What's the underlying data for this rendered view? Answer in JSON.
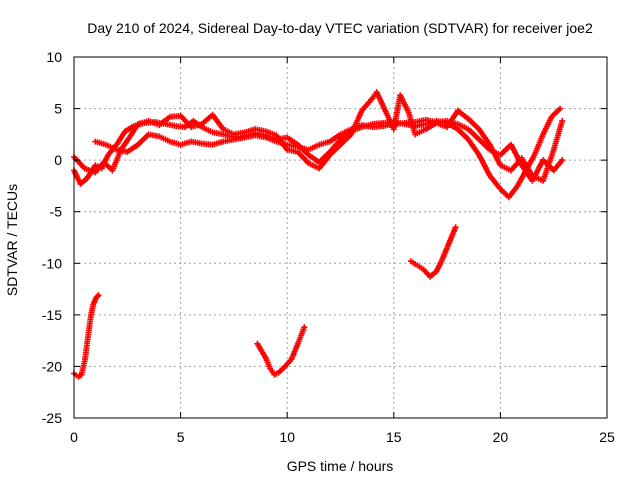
{
  "chart_data": {
    "type": "scatter",
    "title": "Day 210 of 2024, Sidereal Day-to-day VTEC variation (SDTVAR) for receiver joe2",
    "xlabel": "GPS time / hours",
    "ylabel": "SDTVAR / TECUs",
    "xlim": [
      0,
      25
    ],
    "ylim": [
      -25,
      10
    ],
    "xticks": [
      0,
      5,
      10,
      15,
      20,
      25
    ],
    "yticks": [
      -25,
      -20,
      -15,
      -10,
      -5,
      0,
      5,
      10
    ],
    "grid": true,
    "legend": "none",
    "series_color": "#ff0000",
    "marker": "plus",
    "series": [
      {
        "name": "trace-1",
        "points": [
          [
            0.0,
            -1.0
          ],
          [
            0.3,
            -2.3
          ],
          [
            0.6,
            -1.8
          ],
          [
            1.0,
            -0.5
          ],
          [
            1.3,
            -0.8
          ],
          [
            1.6,
            0.5
          ],
          [
            2.0,
            1.5
          ],
          [
            2.4,
            2.8
          ],
          [
            2.8,
            3.3
          ],
          [
            3.3,
            3.6
          ],
          [
            3.8,
            3.7
          ],
          [
            4.3,
            3.5
          ],
          [
            4.8,
            3.3
          ],
          [
            5.2,
            3.2
          ],
          [
            5.6,
            3.8
          ],
          [
            6.0,
            3.2
          ],
          [
            6.5,
            2.7
          ],
          [
            7.0,
            2.5
          ],
          [
            7.5,
            2.2
          ],
          [
            8.0,
            2.3
          ],
          [
            8.5,
            2.6
          ],
          [
            9.0,
            2.4
          ],
          [
            9.5,
            2.0
          ],
          [
            10.0,
            2.2
          ],
          [
            10.5,
            1.5
          ],
          [
            11.0,
            0.5
          ],
          [
            11.5,
            -0.2
          ],
          [
            12.0,
            0.8
          ],
          [
            12.5,
            2.0
          ],
          [
            13.0,
            2.8
          ],
          [
            13.5,
            3.2
          ],
          [
            14.0,
            3.5
          ],
          [
            14.5,
            3.6
          ],
          [
            15.0,
            3.7
          ],
          [
            15.5,
            3.5
          ],
          [
            16.0,
            3.3
          ],
          [
            16.5,
            3.5
          ],
          [
            17.0,
            3.8
          ],
          [
            17.5,
            3.6
          ],
          [
            18.0,
            3.0
          ],
          [
            18.5,
            2.0
          ],
          [
            19.0,
            0.5
          ],
          [
            19.5,
            -1.5
          ],
          [
            20.0,
            -2.8
          ],
          [
            20.4,
            -3.6
          ],
          [
            20.8,
            -2.5
          ],
          [
            21.2,
            -1.0
          ],
          [
            21.6,
            0.5
          ],
          [
            22.0,
            2.5
          ],
          [
            22.4,
            4.2
          ],
          [
            22.8,
            5.0
          ]
        ]
      },
      {
        "name": "trace-2",
        "points": [
          [
            0.0,
            0.3
          ],
          [
            0.5,
            -0.8
          ],
          [
            1.0,
            -1.2
          ],
          [
            1.4,
            -0.2
          ],
          [
            1.8,
            -1.0
          ],
          [
            2.2,
            1.0
          ],
          [
            2.6,
            2.2
          ],
          [
            3.0,
            3.5
          ],
          [
            3.5,
            3.8
          ],
          [
            4.0,
            3.4
          ],
          [
            4.5,
            4.2
          ],
          [
            5.0,
            4.3
          ],
          [
            5.5,
            3.2
          ],
          [
            6.0,
            3.5
          ],
          [
            6.5,
            4.4
          ],
          [
            7.0,
            3.0
          ],
          [
            7.5,
            2.5
          ],
          [
            8.0,
            2.7
          ],
          [
            8.5,
            3.0
          ],
          [
            9.0,
            2.8
          ],
          [
            9.5,
            2.4
          ],
          [
            10.0,
            1.0
          ],
          [
            10.5,
            0.8
          ],
          [
            11.0,
            -0.3
          ],
          [
            11.5,
            -0.8
          ],
          [
            12.0,
            0.5
          ],
          [
            12.5,
            1.5
          ],
          [
            13.0,
            2.5
          ],
          [
            13.5,
            4.8
          ],
          [
            14.0,
            6.0
          ],
          [
            14.2,
            6.6
          ],
          [
            15.0,
            3.0
          ],
          [
            15.3,
            6.3
          ],
          [
            15.7,
            4.6
          ],
          [
            16.0,
            2.5
          ],
          [
            16.5,
            3.0
          ],
          [
            17.0,
            3.6
          ],
          [
            17.5,
            3.2
          ],
          [
            18.0,
            4.8
          ],
          [
            18.5,
            4.0
          ],
          [
            19.0,
            3.0
          ],
          [
            19.5,
            1.5
          ],
          [
            20.0,
            -0.5
          ],
          [
            20.5,
            -1.0
          ],
          [
            21.0,
            0.2
          ],
          [
            21.5,
            -1.5
          ],
          [
            22.0,
            -2.0
          ],
          [
            22.5,
            1.0
          ],
          [
            22.9,
            3.8
          ]
        ]
      },
      {
        "name": "trace-3",
        "points": [
          [
            1.0,
            1.8
          ],
          [
            1.5,
            1.5
          ],
          [
            2.0,
            1.0
          ],
          [
            2.5,
            0.8
          ],
          [
            3.0,
            1.5
          ],
          [
            3.5,
            2.5
          ],
          [
            4.0,
            2.3
          ],
          [
            4.5,
            1.8
          ],
          [
            5.0,
            1.5
          ],
          [
            5.5,
            1.8
          ],
          [
            6.0,
            1.6
          ],
          [
            6.5,
            1.5
          ],
          [
            7.0,
            1.8
          ],
          [
            7.5,
            2.0
          ],
          [
            8.0,
            2.2
          ],
          [
            8.5,
            2.4
          ],
          [
            9.0,
            2.2
          ],
          [
            9.5,
            1.8
          ],
          [
            10.0,
            1.5
          ],
          [
            10.5,
            1.3
          ],
          [
            11.0,
            1.0
          ],
          [
            11.5,
            1.5
          ],
          [
            12.0,
            1.8
          ],
          [
            12.5,
            2.5
          ],
          [
            13.0,
            3.0
          ],
          [
            13.5,
            3.4
          ],
          [
            14.0,
            3.2
          ],
          [
            14.5,
            3.3
          ],
          [
            15.0,
            3.5
          ],
          [
            15.5,
            3.6
          ],
          [
            16.0,
            3.7
          ],
          [
            16.5,
            3.9
          ],
          [
            17.0,
            3.7
          ],
          [
            17.5,
            3.8
          ],
          [
            18.0,
            3.5
          ],
          [
            18.5,
            3.0
          ],
          [
            19.0,
            2.0
          ],
          [
            19.5,
            1.0
          ],
          [
            20.0,
            0.5
          ],
          [
            20.5,
            1.5
          ],
          [
            21.0,
            -0.5
          ],
          [
            21.5,
            -2.0
          ],
          [
            22.0,
            0.0
          ],
          [
            22.5,
            -1.0
          ],
          [
            22.9,
            0.0
          ]
        ]
      },
      {
        "name": "trace-4",
        "points": [
          [
            0.0,
            -20.7
          ],
          [
            0.2,
            -21.0
          ],
          [
            0.35,
            -20.8
          ],
          [
            0.5,
            -19.5
          ],
          [
            0.6,
            -18.0
          ],
          [
            0.7,
            -16.5
          ],
          [
            0.8,
            -15.0
          ],
          [
            0.9,
            -14.0
          ],
          [
            1.05,
            -13.3
          ],
          [
            1.15,
            -13.1
          ]
        ]
      },
      {
        "name": "trace-5",
        "points": [
          [
            8.6,
            -17.8
          ],
          [
            8.8,
            -18.5
          ],
          [
            9.0,
            -19.2
          ],
          [
            9.2,
            -20.2
          ],
          [
            9.4,
            -20.8
          ],
          [
            9.6,
            -20.6
          ],
          [
            9.9,
            -20.0
          ],
          [
            10.2,
            -19.3
          ],
          [
            10.5,
            -17.8
          ],
          [
            10.8,
            -16.2
          ]
        ]
      },
      {
        "name": "trace-6",
        "points": [
          [
            15.8,
            -9.8
          ],
          [
            16.1,
            -10.2
          ],
          [
            16.4,
            -10.6
          ],
          [
            16.7,
            -11.3
          ],
          [
            17.0,
            -10.8
          ],
          [
            17.3,
            -9.5
          ],
          [
            17.6,
            -8.0
          ],
          [
            17.9,
            -6.5
          ]
        ]
      }
    ]
  }
}
